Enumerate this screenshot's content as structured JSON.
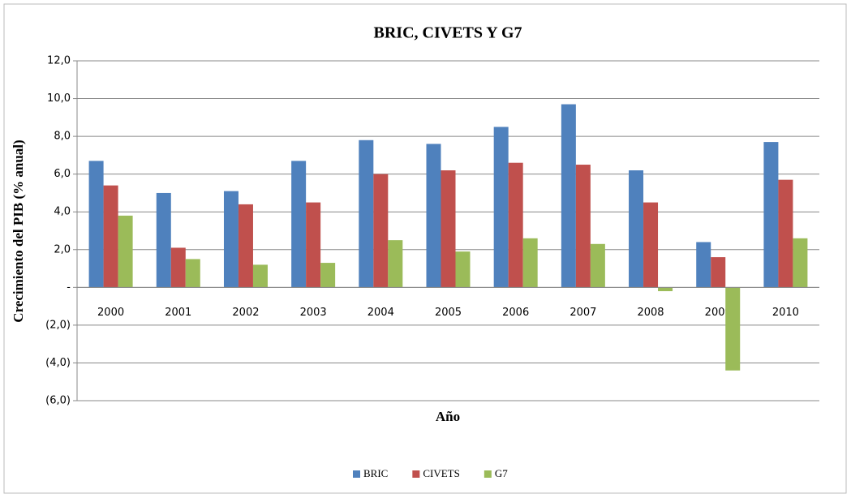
{
  "chart_data": {
    "type": "bar",
    "title": "BRIC, CIVETS Y G7",
    "x_label": "Año",
    "y_label": "Crecimiento del PIB (% anual)",
    "categories": [
      "2000",
      "2001",
      "2002",
      "2003",
      "2004",
      "2005",
      "2006",
      "2007",
      "2008",
      "2009",
      "2010"
    ],
    "series": [
      {
        "name": "BRIC",
        "color": "#4f81bd",
        "values": [
          6.7,
          5.0,
          5.1,
          6.7,
          7.8,
          7.6,
          8.5,
          9.7,
          6.2,
          2.4,
          7.7
        ]
      },
      {
        "name": "CIVETS",
        "color": "#c0504d",
        "values": [
          5.4,
          2.1,
          4.4,
          4.5,
          6.0,
          6.2,
          6.6,
          6.5,
          4.5,
          1.6,
          5.7
        ]
      },
      {
        "name": "G7",
        "color": "#9bbb59",
        "values": [
          3.8,
          1.5,
          1.2,
          1.3,
          2.5,
          1.9,
          2.6,
          2.3,
          -0.2,
          -4.4,
          2.6
        ]
      }
    ],
    "ylim": [
      -6,
      12
    ],
    "yticks": [
      {
        "value": -6,
        "label": "(6,0)"
      },
      {
        "value": -4,
        "label": "(4,0)"
      },
      {
        "value": -2,
        "label": "(2,0)"
      },
      {
        "value": 0,
        "label": "-"
      },
      {
        "value": 2,
        "label": "2,0"
      },
      {
        "value": 4,
        "label": "4,0"
      },
      {
        "value": 6,
        "label": "6,0"
      },
      {
        "value": 8,
        "label": "8,0"
      },
      {
        "value": 10,
        "label": "10,0"
      },
      {
        "value": 12,
        "label": "12,0"
      }
    ],
    "grid": true,
    "legend": "bottom"
  }
}
